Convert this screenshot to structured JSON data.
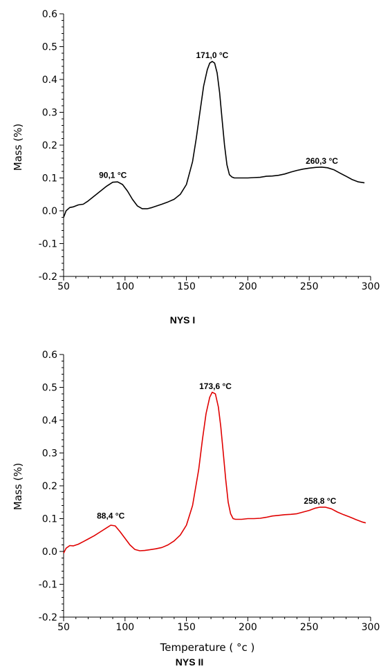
{
  "chart_data": [
    {
      "type": "line",
      "caption": "NYS I",
      "xlabel": "",
      "ylabel": "Mass (%)",
      "xlim": [
        50,
        300
      ],
      "ylim": [
        -0.2,
        0.6
      ],
      "x_ticks": [
        "50",
        "100",
        "150",
        "200",
        "250",
        "300"
      ],
      "y_ticks": [
        "-0.2",
        "-0.1",
        "0.0",
        "0.1",
        "0.2",
        "0.3",
        "0.4",
        "0.5",
        "0.6"
      ],
      "grid": false,
      "color": "#000000",
      "series": [
        {
          "x": [
            50,
            52,
            55,
            58,
            62,
            66,
            70,
            75,
            80,
            85,
            90,
            94,
            98,
            102,
            106,
            110,
            114,
            118,
            122,
            126,
            130,
            135,
            140,
            145,
            150,
            155,
            158,
            161,
            164,
            167,
            169,
            171,
            173,
            175,
            177,
            179,
            181,
            183,
            185,
            187,
            189,
            192,
            196,
            200,
            205,
            210,
            215,
            220,
            225,
            230,
            235,
            240,
            245,
            250,
            255,
            260,
            265,
            270,
            275,
            280,
            285,
            290,
            295
          ],
          "y": [
            -0.02,
            0.0,
            0.01,
            0.012,
            0.018,
            0.02,
            0.03,
            0.045,
            0.06,
            0.075,
            0.087,
            0.088,
            0.08,
            0.06,
            0.035,
            0.015,
            0.006,
            0.006,
            0.01,
            0.015,
            0.02,
            0.027,
            0.035,
            0.05,
            0.08,
            0.15,
            0.22,
            0.3,
            0.38,
            0.43,
            0.45,
            0.455,
            0.45,
            0.42,
            0.36,
            0.28,
            0.2,
            0.14,
            0.11,
            0.103,
            0.1,
            0.1,
            0.1,
            0.1,
            0.101,
            0.102,
            0.105,
            0.106,
            0.108,
            0.112,
            0.118,
            0.123,
            0.127,
            0.13,
            0.132,
            0.133,
            0.131,
            0.125,
            0.115,
            0.105,
            0.095,
            0.088,
            0.085
          ]
        }
      ],
      "annotations": [
        {
          "text": "90,1 °C",
          "x": 90.1,
          "y": 0.1
        },
        {
          "text": "171,0 °C",
          "x": 171.0,
          "y": 0.465
        },
        {
          "text": "260,3 °C",
          "x": 260.3,
          "y": 0.143
        }
      ]
    },
    {
      "type": "line",
      "caption": "NYS II",
      "xlabel": "Temperature ( °c )",
      "ylabel": "Mass (%)",
      "xlim": [
        50,
        300
      ],
      "ylim": [
        -0.2,
        0.6
      ],
      "x_ticks": [
        "50",
        "100",
        "150",
        "200",
        "250",
        "300"
      ],
      "y_ticks": [
        "-0.2",
        "-0.1",
        "0.0",
        "0.1",
        "0.2",
        "0.3",
        "0.4",
        "0.5",
        "0.6"
      ],
      "grid": false,
      "color": "#e00000",
      "series": [
        {
          "x": [
            50,
            52,
            55,
            58,
            62,
            66,
            70,
            75,
            80,
            85,
            88.4,
            92,
            96,
            100,
            104,
            108,
            112,
            116,
            120,
            125,
            130,
            135,
            140,
            145,
            150,
            155,
            160,
            163,
            166,
            169,
            171,
            173.6,
            176,
            178,
            180,
            182,
            184,
            186,
            188,
            190,
            195,
            200,
            205,
            210,
            215,
            220,
            225,
            230,
            235,
            240,
            245,
            250,
            255,
            258.8,
            263,
            268,
            273,
            278,
            283,
            288,
            293,
            296
          ],
          "y": [
            -0.005,
            0.01,
            0.018,
            0.017,
            0.022,
            0.03,
            0.038,
            0.048,
            0.06,
            0.072,
            0.08,
            0.078,
            0.06,
            0.04,
            0.02,
            0.006,
            0.002,
            0.003,
            0.005,
            0.008,
            0.012,
            0.02,
            0.032,
            0.05,
            0.08,
            0.14,
            0.25,
            0.34,
            0.42,
            0.47,
            0.485,
            0.48,
            0.44,
            0.38,
            0.3,
            0.22,
            0.15,
            0.115,
            0.1,
            0.098,
            0.098,
            0.1,
            0.1,
            0.101,
            0.104,
            0.108,
            0.11,
            0.112,
            0.113,
            0.115,
            0.12,
            0.125,
            0.132,
            0.135,
            0.135,
            0.13,
            0.12,
            0.112,
            0.105,
            0.097,
            0.09,
            0.087
          ]
        }
      ],
      "annotations": [
        {
          "text": "88,4 °C",
          "x": 88.4,
          "y": 0.1
        },
        {
          "text": "173,6 °C",
          "x": 173.6,
          "y": 0.495
        },
        {
          "text": "258,8 °C",
          "x": 258.8,
          "y": 0.145
        }
      ]
    }
  ]
}
